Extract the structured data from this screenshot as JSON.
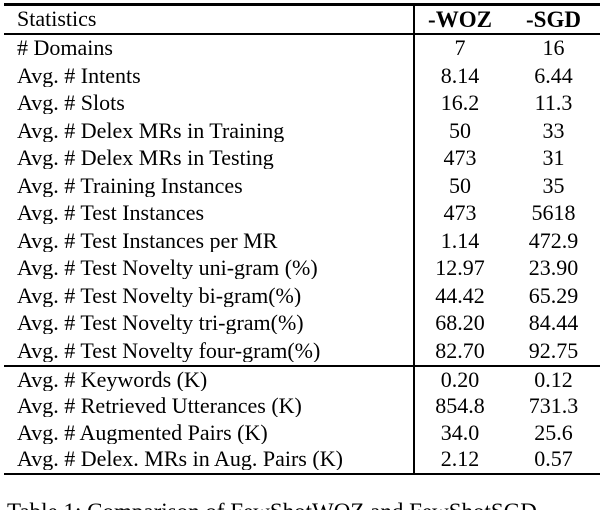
{
  "colors": {
    "background": "#ffffff",
    "text": "#000000",
    "rule": "#000000"
  },
  "table": {
    "header": {
      "statistics": "Statistics",
      "woz": "-WOZ",
      "sgd": "-SGD"
    },
    "groups": [
      {
        "name": "dataset-statistics",
        "rows": [
          {
            "label": "# Domains",
            "woz": "7",
            "sgd": "16"
          },
          {
            "label": "Avg. # Intents",
            "woz": "8.14",
            "sgd": "6.44"
          },
          {
            "label": "Avg. # Slots",
            "woz": "16.2",
            "sgd": "11.3"
          },
          {
            "label": "Avg. # Delex MRs in Training",
            "woz": "50",
            "sgd": "33"
          },
          {
            "label": "Avg. # Delex MRs in Testing",
            "woz": "473",
            "sgd": "31"
          },
          {
            "label": "Avg. # Training Instances",
            "woz": "50",
            "sgd": "35"
          },
          {
            "label": "Avg. # Test Instances",
            "woz": "473",
            "sgd": "5618"
          },
          {
            "label": "Avg. # Test Instances per MR",
            "woz": "1.14",
            "sgd": "472.9"
          },
          {
            "label": "Avg. # Test Novelty uni-gram (%)",
            "woz": "12.97",
            "sgd": "23.90"
          },
          {
            "label": "Avg. # Test Novelty bi-gram(%)",
            "woz": "44.42",
            "sgd": "65.29"
          },
          {
            "label": "Avg. # Test Novelty tri-gram(%)",
            "woz": "68.20",
            "sgd": "84.44"
          },
          {
            "label": "Avg. # Test Novelty four-gram(%)",
            "woz": "82.70",
            "sgd": "92.75"
          }
        ]
      },
      {
        "name": "augmentation-statistics",
        "rows": [
          {
            "label": "Avg. # Keywords (K)",
            "woz": "0.20",
            "sgd": "0.12"
          },
          {
            "label": "Avg. # Retrieved Utterances (K)",
            "woz": "854.8",
            "sgd": "731.3"
          },
          {
            "label": "Avg. # Augmented Pairs (K)",
            "woz": "34.0",
            "sgd": "25.6"
          },
          {
            "label": "Avg. # Delex. MRs in Aug. Pairs (K)",
            "woz": "2.12",
            "sgd": "0.57"
          }
        ]
      }
    ]
  },
  "caption": {
    "text": "Table 1: Comparison of FewShotWOZ and FewShotSGD"
  }
}
